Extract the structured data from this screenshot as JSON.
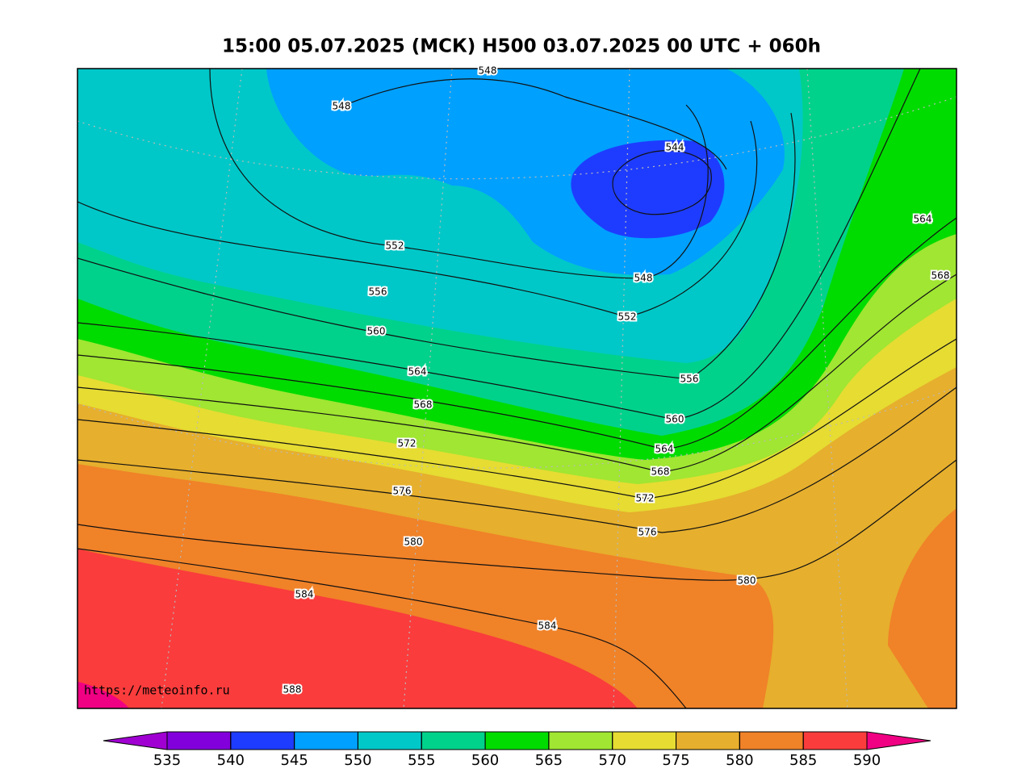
{
  "title": "15:00 05.07.2025 (МСК) H500  03.07.2025 00 UTC + 060h",
  "watermark": "https://meteoinfo.ru",
  "contour_labels": [
    "548",
    "548",
    "544",
    "564",
    "568",
    "552",
    "556",
    "548",
    "552",
    "560",
    "564",
    "556",
    "568",
    "560",
    "572",
    "564",
    "568",
    "576",
    "572",
    "576",
    "580",
    "580",
    "584",
    "584",
    "588"
  ],
  "colorbar": {
    "ticks": [
      535,
      540,
      545,
      550,
      555,
      560,
      565,
      570,
      575,
      580,
      585,
      590
    ],
    "colors": [
      "#a000d2",
      "#8200dc",
      "#1e3cff",
      "#00a0ff",
      "#00c8c8",
      "#00d28c",
      "#00dc00",
      "#a0e632",
      "#e6dc32",
      "#e6af2d",
      "#f08228",
      "#fa3c3c",
      "#f00082"
    ]
  }
}
